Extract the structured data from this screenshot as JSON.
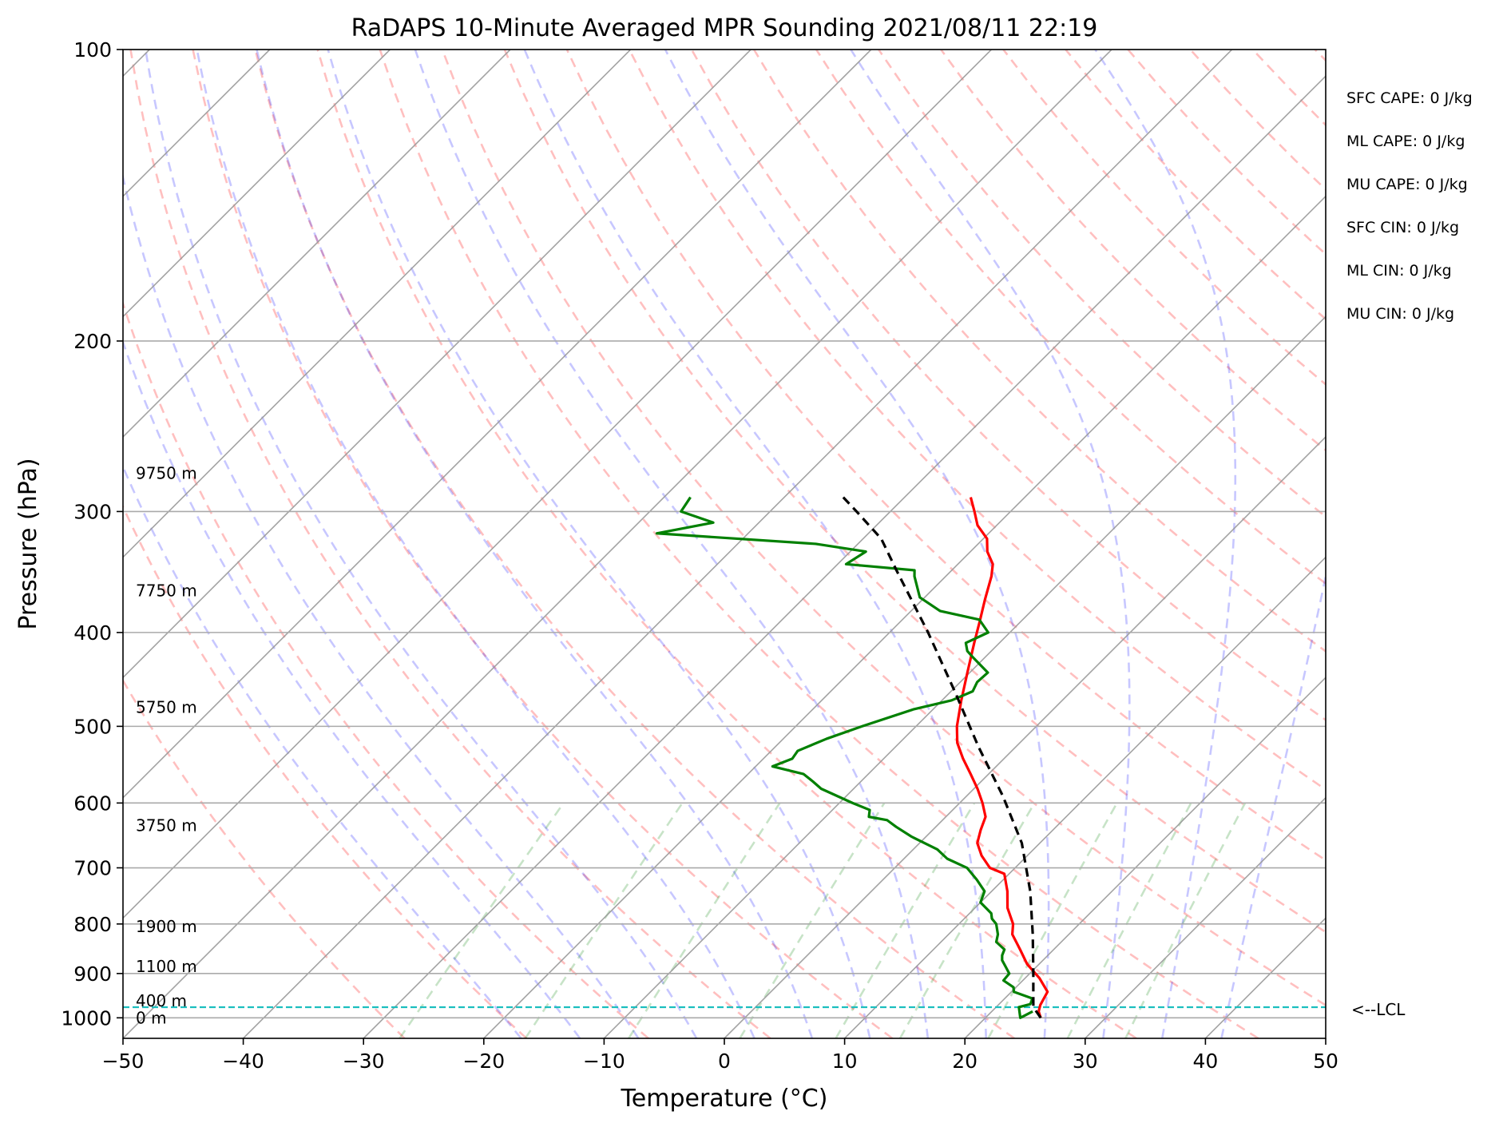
{
  "chart_data": {
    "type": "skew-t",
    "title": "RaDAPS 10-Minute Averaged MPR Sounding 2021/08/11 22:19",
    "xlabel": "Temperature (°C)",
    "ylabel": "Pressure (hPa)",
    "xlim": [
      -50,
      50
    ],
    "ylim": [
      1050,
      100
    ],
    "yscale": "log",
    "grid": true,
    "x_ticks": [
      -50,
      -40,
      -30,
      -20,
      -10,
      0,
      10,
      20,
      30,
      40,
      50
    ],
    "x_tick_labels": [
      "−50",
      "−40",
      "−30",
      "−20",
      "−10",
      "0",
      "10",
      "20",
      "30",
      "40",
      "50"
    ],
    "y_ticks": [
      1000,
      900,
      800,
      700,
      600,
      500,
      400,
      300,
      200,
      100
    ],
    "y_tick_labels": [
      "1000",
      "900",
      "800",
      "700",
      "600",
      "500",
      "400",
      "300",
      "200",
      "100"
    ],
    "height_labels": [
      {
        "text": "0 m",
        "p": 1000
      },
      {
        "text": "400 m",
        "p": 960
      },
      {
        "text": "1100 m",
        "p": 885
      },
      {
        "text": "1900 m",
        "p": 805
      },
      {
        "text": "3750 m",
        "p": 633
      },
      {
        "text": "5750 m",
        "p": 478
      },
      {
        "text": "7750 m",
        "p": 362
      },
      {
        "text": "9750 m",
        "p": 274
      }
    ],
    "indices": [
      "SFC CAPE: 0 J/kg",
      "ML CAPE: 0 J/kg",
      "MU CAPE: 0 J/kg",
      "SFC CIN: 0 J/kg",
      "ML CIN: 0 J/kg",
      "MU CIN: 0 J/kg"
    ],
    "lcl_label": "<--LCL",
    "lcl_pressure": 975,
    "series": [
      {
        "name": "temperature",
        "color": "#ff0000",
        "points": [
          [
            24.6,
            1000
          ],
          [
            23.9,
            985
          ],
          [
            23.5,
            970
          ],
          [
            23.0,
            940
          ],
          [
            21.2,
            910
          ],
          [
            19.0,
            880
          ],
          [
            17.2,
            850
          ],
          [
            15.3,
            820
          ],
          [
            14.5,
            800
          ],
          [
            12.7,
            770
          ],
          [
            11.3,
            740
          ],
          [
            9.6,
            710
          ],
          [
            7.9,
            700
          ],
          [
            6.2,
            680
          ],
          [
            4.8,
            660
          ],
          [
            4.0,
            640
          ],
          [
            3.3,
            620
          ],
          [
            1.9,
            600
          ],
          [
            0.3,
            580
          ],
          [
            -1.5,
            560
          ],
          [
            -3.4,
            540
          ],
          [
            -5.2,
            520
          ],
          [
            -6.6,
            500
          ],
          [
            -8.4,
            470
          ],
          [
            -10.2,
            440
          ],
          [
            -12.1,
            410
          ],
          [
            -13.4,
            390
          ],
          [
            -14.8,
            370
          ],
          [
            -16.2,
            350
          ],
          [
            -17.1,
            340
          ],
          [
            -18.6,
            330
          ],
          [
            -19.7,
            320
          ],
          [
            -21.6,
            310
          ],
          [
            -23.0,
            300
          ],
          [
            -24.5,
            290
          ]
        ]
      },
      {
        "name": "dewpoint",
        "color": "#008000",
        "points": [
          [
            23.4,
            985
          ],
          [
            22.9,
            1000
          ],
          [
            21.9,
            975
          ],
          [
            22.6,
            968
          ],
          [
            22.3,
            955
          ],
          [
            20.2,
            940
          ],
          [
            19.8,
            930
          ],
          [
            18.4,
            915
          ],
          [
            18.3,
            900
          ],
          [
            17.4,
            885
          ],
          [
            16.6,
            872
          ],
          [
            16.2,
            862
          ],
          [
            15.9,
            850
          ],
          [
            14.6,
            835
          ],
          [
            14.1,
            820
          ],
          [
            13.1,
            800
          ],
          [
            12.3,
            790
          ],
          [
            11.8,
            780
          ],
          [
            10.0,
            760
          ],
          [
            9.4,
            740
          ],
          [
            7.8,
            720
          ],
          [
            6.0,
            700
          ],
          [
            3.6,
            685
          ],
          [
            2.0,
            670
          ],
          [
            -1.2,
            650
          ],
          [
            -3.3,
            635
          ],
          [
            -4.6,
            625
          ],
          [
            -6.4,
            620
          ],
          [
            -6.9,
            610
          ],
          [
            -8.9,
            600
          ],
          [
            -12.7,
            580
          ],
          [
            -14.0,
            570
          ],
          [
            -15.4,
            560
          ],
          [
            -18.6,
            550
          ],
          [
            -17.6,
            540
          ],
          [
            -17.8,
            530
          ],
          [
            -16.4,
            515
          ],
          [
            -14.5,
            500
          ],
          [
            -11.6,
            480
          ],
          [
            -9.2,
            470
          ],
          [
            -8.2,
            460
          ],
          [
            -8.6,
            450
          ],
          [
            -8.5,
            440
          ],
          [
            -10.9,
            425
          ],
          [
            -12.0,
            418
          ],
          [
            -12.8,
            410
          ],
          [
            -11.8,
            400
          ],
          [
            -13.6,
            388
          ],
          [
            -17.6,
            380
          ],
          [
            -20.4,
            368
          ],
          [
            -22.6,
            350
          ],
          [
            -23.1,
            345
          ],
          [
            -29.3,
            340
          ],
          [
            -28.7,
            330
          ],
          [
            -33.5,
            324
          ],
          [
            -47.6,
            316
          ],
          [
            -43.8,
            308
          ],
          [
            -47.4,
            300
          ],
          [
            -47.8,
            290
          ]
        ]
      },
      {
        "name": "parcel",
        "color": "#000000",
        "dashed": true,
        "points": [
          [
            24.6,
            1000
          ],
          [
            23.1,
            975
          ],
          [
            20.3,
            900
          ],
          [
            17.0,
            820
          ],
          [
            13.2,
            740
          ],
          [
            8.5,
            660
          ],
          [
            3.0,
            590
          ],
          [
            -3.1,
            525
          ],
          [
            -9.7,
            460
          ],
          [
            -16.8,
            400
          ],
          [
            -24.6,
            345
          ],
          [
            -28.5,
            320
          ],
          [
            -32.8,
            300
          ],
          [
            -35.1,
            290
          ]
        ]
      }
    ]
  }
}
